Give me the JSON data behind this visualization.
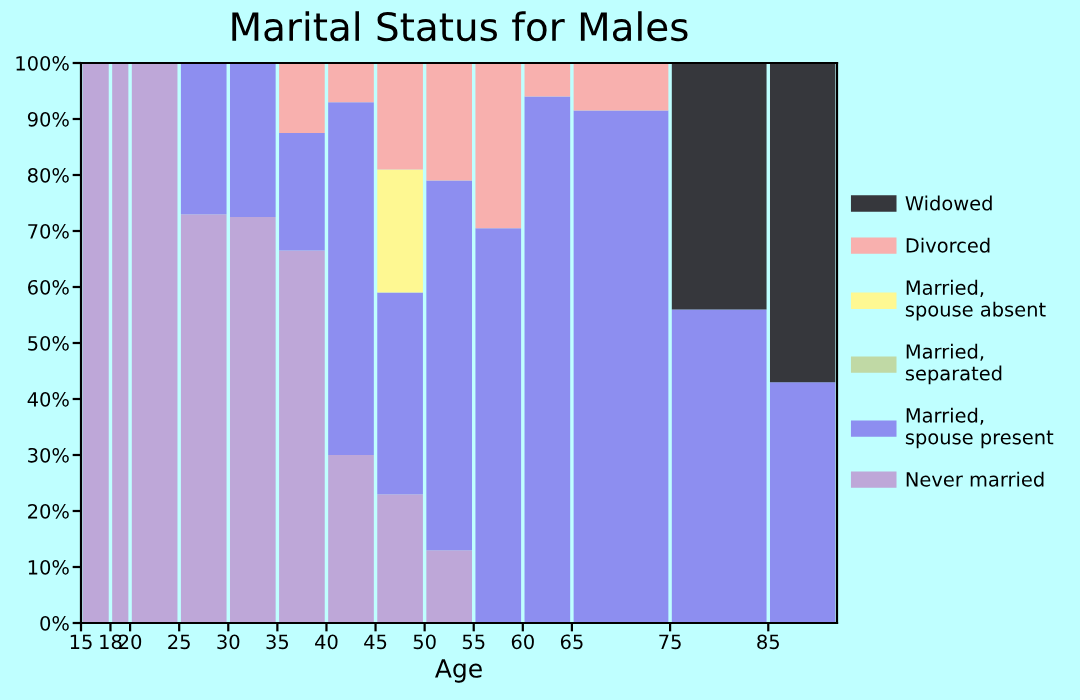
{
  "chart_data": {
    "type": "bar",
    "title": "Marital Status for Males",
    "xlabel": "Age",
    "stacked": true,
    "x": [
      16.5,
      19,
      22.5,
      27.5,
      32.5,
      37.5,
      42.5,
      47.5,
      52.5,
      57.5,
      62.5,
      70,
      80,
      88.5
    ],
    "xlim": [
      15,
      92
    ],
    "xticks": [
      15,
      18,
      20,
      25,
      30,
      35,
      40,
      45,
      50,
      55,
      60,
      65,
      75,
      85
    ],
    "ylim": [
      0,
      100
    ],
    "yticks": [
      {
        "value": 0,
        "label": "0%"
      },
      {
        "value": 10,
        "label": "10%"
      },
      {
        "value": 20,
        "label": "20%"
      },
      {
        "value": 30,
        "label": "30%"
      },
      {
        "value": 40,
        "label": "40%"
      },
      {
        "value": 50,
        "label": "50%"
      },
      {
        "value": 60,
        "label": "60%"
      },
      {
        "value": 70,
        "label": "70%"
      },
      {
        "value": 80,
        "label": "80%"
      },
      {
        "value": 90,
        "label": "90%"
      },
      {
        "value": 100,
        "label": "100%"
      }
    ],
    "grid": false,
    "legend": "right",
    "series": [
      {
        "name": "Never married",
        "color": "#bea7d8",
        "values": [
          100,
          100,
          100,
          73,
          72.5,
          66.5,
          30,
          23,
          13,
          0,
          0,
          0,
          0,
          0
        ]
      },
      {
        "name": "Married, spouse present",
        "color": "#8d8ef0",
        "values": [
          0,
          0,
          0,
          27,
          27.5,
          21,
          63,
          36,
          66,
          70.5,
          94,
          91.5,
          56,
          43
        ]
      },
      {
        "name": "Married, separated",
        "color": "#c0d9a5",
        "values": [
          0,
          0,
          0,
          0,
          0,
          0,
          0,
          0,
          0,
          0,
          0,
          0,
          0,
          0
        ]
      },
      {
        "name": "Married, spouse absent",
        "color": "#fef892",
        "values": [
          0,
          0,
          0,
          0,
          0,
          0,
          0,
          22,
          0,
          0,
          0,
          0,
          0,
          0
        ]
      },
      {
        "name": "Divorced",
        "color": "#f8b0ae",
        "values": [
          0,
          0,
          0,
          0,
          0,
          12.5,
          7,
          19,
          21,
          29.5,
          6,
          8.5,
          0,
          0
        ]
      },
      {
        "name": "Widowed",
        "color": "#36373c",
        "values": [
          0,
          0,
          0,
          0,
          0,
          0,
          0,
          0,
          0,
          0,
          0,
          0,
          44,
          57
        ]
      }
    ]
  }
}
